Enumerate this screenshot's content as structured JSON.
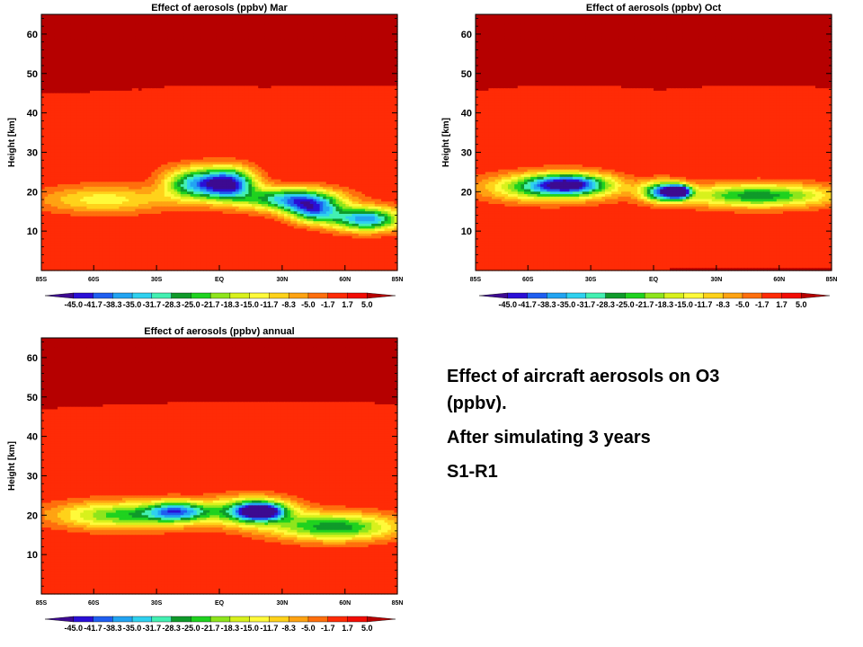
{
  "chart_data": [
    {
      "type": "heatmap",
      "title": "Effect of aerosols (ppbv) Mar",
      "ylabel": "Height [km]",
      "xlabel": "",
      "ylim": [
        0,
        65
      ],
      "yticks": [
        10,
        20,
        30,
        40,
        50,
        60
      ],
      "xlim": [
        -85,
        85
      ],
      "xticks": [
        {
          "value": -85,
          "label": "85S"
        },
        {
          "value": -60,
          "label": "60S"
        },
        {
          "value": -30,
          "label": "30S"
        },
        {
          "value": 0,
          "label": "EQ"
        },
        {
          "value": 30,
          "label": "30N"
        },
        {
          "value": 60,
          "label": "60N"
        },
        {
          "value": 85,
          "label": "85N"
        }
      ],
      "background_level": 5.0,
      "features": [
        {
          "lat": -72,
          "height": 27,
          "dlat": 14,
          "dh": 3,
          "value": 3.5
        },
        {
          "lat": -40,
          "height": 28,
          "dlat": 14,
          "dh": 3,
          "value": 3.5
        },
        {
          "lat": 55,
          "height": 29,
          "dlat": 25,
          "dh": 3,
          "value": 3.5
        },
        {
          "lat": -55,
          "height": 18,
          "dlat": 32,
          "dh": 3.5,
          "value": -10
        },
        {
          "lat": -12,
          "height": 22,
          "dlat": 14,
          "dh": 4,
          "value": -28
        },
        {
          "lat": 5,
          "height": 22,
          "dlat": 12,
          "dh": 4,
          "value": -38
        },
        {
          "lat": 35,
          "height": 18,
          "dlat": 22,
          "dh": 3,
          "value": -32
        },
        {
          "lat": 45,
          "height": 15,
          "dlat": 12,
          "dh": 3,
          "value": -24
        },
        {
          "lat": 70,
          "height": 13,
          "dlat": 17,
          "dh": 3,
          "value": -34
        }
      ],
      "colorbar": {
        "levels": [
          -45.0,
          -41.7,
          -38.3,
          -35.0,
          -31.7,
          -28.3,
          -25.0,
          -21.7,
          -18.3,
          -15.0,
          -11.7,
          -8.3,
          -5.0,
          -1.7,
          1.7,
          5.0
        ],
        "labels": [
          "-45.0",
          "-41.7",
          "-38.3",
          "-35.0",
          "-31.7",
          "-28.3",
          "-25.0",
          "-21.7",
          "-18.3",
          "-15.0",
          "-11.7",
          "-8.3",
          "-5.0",
          "-1.7",
          "1.7",
          "5.0"
        ]
      }
    },
    {
      "type": "heatmap",
      "title": "Effect of aerosols (ppbv) Oct",
      "ylabel": "Height [km]",
      "xlabel": "",
      "ylim": [
        0,
        65
      ],
      "yticks": [
        10,
        20,
        30,
        40,
        50,
        60
      ],
      "xlim": [
        -85,
        85
      ],
      "xticks": [
        {
          "value": -85,
          "label": "85S"
        },
        {
          "value": -60,
          "label": "60S"
        },
        {
          "value": -30,
          "label": "30S"
        },
        {
          "value": 0,
          "label": "EQ"
        },
        {
          "value": 30,
          "label": "30N"
        },
        {
          "value": 60,
          "label": "60N"
        },
        {
          "value": 85,
          "label": "85N"
        }
      ],
      "background_level": 5.0,
      "features": [
        {
          "lat": -40,
          "height": 29,
          "dlat": 20,
          "dh": 3,
          "value": 3.5
        },
        {
          "lat": 50,
          "height": 29,
          "dlat": 22,
          "dh": 3,
          "value": 3.5
        },
        {
          "lat": -50,
          "height": 21,
          "dlat": 30,
          "dh": 3.5,
          "value": -22
        },
        {
          "lat": -40,
          "height": 22,
          "dlat": 18,
          "dh": 2.5,
          "value": -26
        },
        {
          "lat": 5,
          "height": 20,
          "dlat": 10,
          "dh": 2.5,
          "value": -34
        },
        {
          "lat": 12,
          "height": 20,
          "dlat": 5,
          "dh": 1.5,
          "value": -44
        },
        {
          "lat": 50,
          "height": 19,
          "dlat": 36,
          "dh": 3,
          "value": -24
        }
      ],
      "colorbar": {
        "levels": [
          -45.0,
          -41.7,
          -38.3,
          -35.0,
          -31.7,
          -28.3,
          -25.0,
          -21.7,
          -18.3,
          -15.0,
          -11.7,
          -8.3,
          -5.0,
          -1.7,
          1.7,
          5.0
        ],
        "labels": [
          "-45.0",
          "-41.7",
          "-38.3",
          "-35.0",
          "-31.7",
          "-28.3",
          "-25.0",
          "-21.7",
          "-18.3",
          "-15.0",
          "-11.7",
          "-8.3",
          "-5.0",
          "-1.7",
          "1.7",
          "5.0"
        ]
      }
    },
    {
      "type": "heatmap",
      "title": "Effect of aerosols (ppbv) annual",
      "ylabel": "Height [km]",
      "xlabel": "",
      "ylim": [
        0,
        65
      ],
      "yticks": [
        10,
        20,
        30,
        40,
        50,
        60
      ],
      "xlim": [
        -85,
        85
      ],
      "xticks": [
        {
          "value": -85,
          "label": "85S"
        },
        {
          "value": -60,
          "label": "60S"
        },
        {
          "value": -30,
          "label": "30S"
        },
        {
          "value": 0,
          "label": "EQ"
        },
        {
          "value": 30,
          "label": "30N"
        },
        {
          "value": 60,
          "label": "60N"
        },
        {
          "value": 85,
          "label": "85N"
        }
      ],
      "background_level": 5.0,
      "features": [
        {
          "lat": -40,
          "height": 30,
          "dlat": 22,
          "dh": 3,
          "value": 3.5
        },
        {
          "lat": 25,
          "height": 31,
          "dlat": 35,
          "dh": 3,
          "value": 3.5
        },
        {
          "lat": -45,
          "height": 20,
          "dlat": 34,
          "dh": 3.5,
          "value": -20
        },
        {
          "lat": -20,
          "height": 21,
          "dlat": 14,
          "dh": 2.5,
          "value": -24
        },
        {
          "lat": 15,
          "height": 21,
          "dlat": 20,
          "dh": 3.5,
          "value": -26
        },
        {
          "lat": 20,
          "height": 21,
          "dlat": 10,
          "dh": 2,
          "value": -32
        },
        {
          "lat": 55,
          "height": 17,
          "dlat": 30,
          "dh": 3.5,
          "value": -24
        }
      ],
      "colorbar": {
        "levels": [
          -45.0,
          -41.7,
          -38.3,
          -35.0,
          -31.7,
          -28.3,
          -25.0,
          -21.7,
          -18.3,
          -15.0,
          -11.7,
          -8.3,
          -5.0,
          -1.7,
          1.7,
          5.0
        ],
        "labels": [
          "-45.0",
          "-41.7",
          "-38.3",
          "-35.0",
          "-31.7",
          "-28.3",
          "-25.0",
          "-21.7",
          "-18.3",
          "-15.0",
          "-11.7",
          "-8.3",
          "-5.0",
          "-1.7",
          "1.7",
          "5.0"
        ]
      }
    }
  ],
  "palette": [
    "#3d0a91",
    "#2a0fd6",
    "#1f5ef0",
    "#22a4f2",
    "#2fd1ef",
    "#43f0b2",
    "#0f9a2a",
    "#1fd21f",
    "#8ee51c",
    "#d8f11c",
    "#fffa3a",
    "#ffd21a",
    "#ffa312",
    "#ff6f0d",
    "#ff2b06",
    "#f20c04",
    "#b60000"
  ],
  "side_text": {
    "line1": "Effect of aircraft aerosols on O3",
    "line2": "(ppbv).",
    "line3": "After simulating 3 years",
    "line4": "S1-R1"
  }
}
